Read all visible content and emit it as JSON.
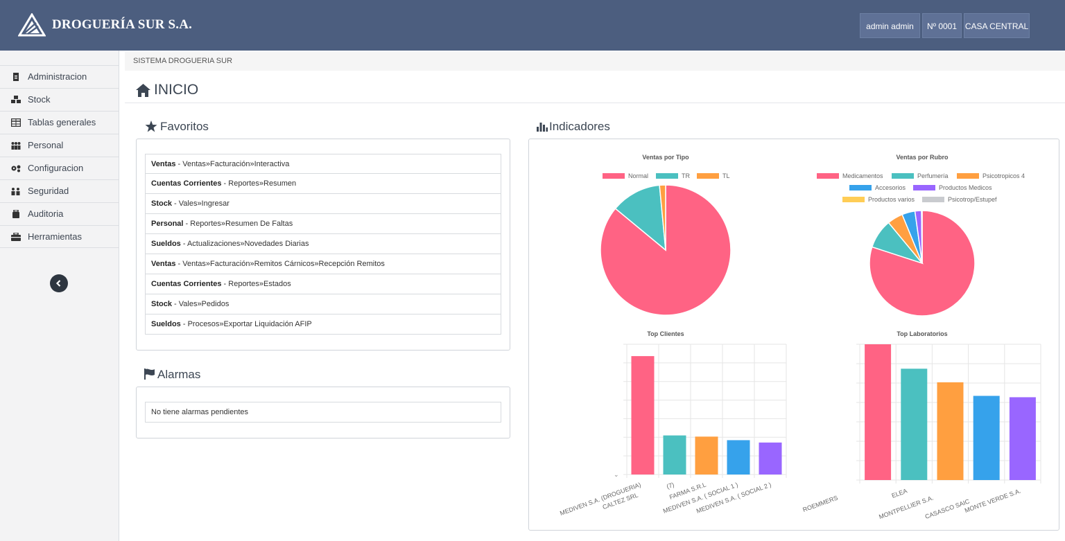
{
  "header": {
    "brand": "DROGUERÍA SUR S.A.",
    "user_button": "admin admin",
    "number_button": "Nº 0001",
    "branch_button": "CASA CENTRAL",
    "bg_color": "#4c5e7f"
  },
  "sidebar": {
    "items": [
      {
        "label": "Administracion",
        "icon": "file-icon"
      },
      {
        "label": "Stock",
        "icon": "cubes-icon"
      },
      {
        "label": "Tablas generales",
        "icon": "table-icon"
      },
      {
        "label": "Personal",
        "icon": "users-icon"
      },
      {
        "label": "Configuracion",
        "icon": "gears-icon"
      },
      {
        "label": "Seguridad",
        "icon": "user-shield-icon"
      },
      {
        "label": "Auditoria",
        "icon": "briefcase-icon"
      },
      {
        "label": "Herramientas",
        "icon": "toolbox-icon"
      }
    ]
  },
  "breadcrumb": "SISTEMA DROGUERIA SUR",
  "page_title": "INICIO",
  "favoritos": {
    "title": "Favoritos",
    "items": [
      {
        "module": "Ventas",
        "path": " - Ventas»Facturación»Interactiva"
      },
      {
        "module": "Cuentas Corrientes",
        "path": " - Reportes»Resumen"
      },
      {
        "module": "Stock",
        "path": " - Vales»Ingresar"
      },
      {
        "module": "Personal",
        "path": " - Reportes»Resumen De Faltas"
      },
      {
        "module": "Sueldos",
        "path": " - Actualizaciones»Novedades Diarias"
      },
      {
        "module": "Ventas",
        "path": " - Ventas»Facturación»Remitos Cárnicos»Recepción Remitos"
      },
      {
        "module": "Cuentas Corrientes",
        "path": " - Reportes»Estados"
      },
      {
        "module": "Stock",
        "path": " - Vales»Pedidos"
      },
      {
        "module": "Sueldos",
        "path": " - Procesos»Exportar Liquidación AFIP"
      }
    ]
  },
  "alarmas": {
    "title": "Alarmas",
    "message": "No tiene alarmas pendientes"
  },
  "indicadores": {
    "title": "Indicadores"
  },
  "chart_data": [
    {
      "type": "pie",
      "title": "Ventas por Tipo",
      "labels": [
        "Normal",
        "TR",
        "TL"
      ],
      "values": [
        86,
        12.5,
        1.5
      ],
      "colors": [
        "#ff6384",
        "#4bc0c0",
        "#ff9f40"
      ],
      "legend": "top"
    },
    {
      "type": "pie",
      "title": "Ventas por Rubro",
      "labels": [
        "Medicamentos",
        "Perfumería",
        "Psicotropicos 4",
        "Accesorios",
        "Productos Medicos",
        "Productos varios",
        "Psicotrop/Estupef"
      ],
      "values": [
        80,
        9,
        4.8,
        4,
        2,
        0.1,
        0.1
      ],
      "colors": [
        "#ff6384",
        "#4bc0c0",
        "#ff9f40",
        "#36a2eb",
        "#9966ff",
        "#ffcd56",
        "#c9cbcf"
      ],
      "legend": "top"
    },
    {
      "type": "bar",
      "title": "Top Clientes",
      "categories": [
        "MEDIVEN S.A. (DROGUERIA)",
        "CALTEZ SRL",
        "(7)",
        "FARMA S.R.L",
        "MEDIVEN S.A. ( SOCIAL 1 )",
        "MEDIVEN S.A. ( SOCIAL 2 )"
      ],
      "values": [
        100,
        0,
        33,
        32,
        29,
        27
      ],
      "colors": [
        "#ff6384",
        "#ff9f40",
        "#4bc0c0",
        "#ff9f40",
        "#36a2eb",
        "#9966ff"
      ],
      "ylim": [
        0,
        110
      ]
    },
    {
      "type": "bar",
      "title": "Top Laboratorios",
      "categories": [
        "ROEMMERS",
        "ELEA",
        "MONTPELLIER S.A.",
        "CASASCO SAIC",
        "MONTE VERDE S.A."
      ],
      "values": [
        100,
        82,
        72,
        62,
        61
      ],
      "colors": [
        "#ff6384",
        "#4bc0c0",
        "#ff9f40",
        "#36a2eb",
        "#9966ff"
      ],
      "ylim": [
        0,
        100
      ]
    }
  ]
}
